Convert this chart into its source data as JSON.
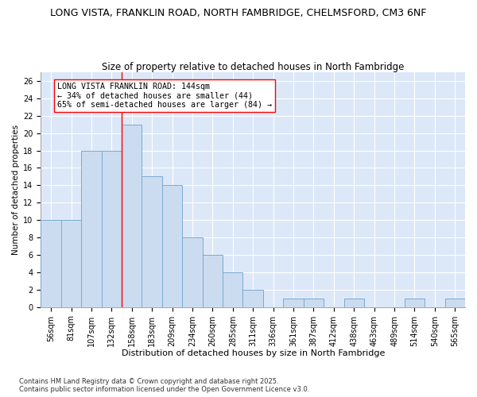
{
  "title1": "LONG VISTA, FRANKLIN ROAD, NORTH FAMBRIDGE, CHELMSFORD, CM3 6NF",
  "title2": "Size of property relative to detached houses in North Fambridge",
  "xlabel": "Distribution of detached houses by size in North Fambridge",
  "ylabel": "Number of detached properties",
  "categories": [
    "56sqm",
    "81sqm",
    "107sqm",
    "132sqm",
    "158sqm",
    "183sqm",
    "209sqm",
    "234sqm",
    "260sqm",
    "285sqm",
    "311sqm",
    "336sqm",
    "361sqm",
    "387sqm",
    "412sqm",
    "438sqm",
    "463sqm",
    "489sqm",
    "514sqm",
    "540sqm",
    "565sqm"
  ],
  "values": [
    10,
    10,
    18,
    18,
    21,
    15,
    14,
    8,
    6,
    4,
    2,
    0,
    1,
    1,
    0,
    1,
    0,
    0,
    1,
    0,
    1
  ],
  "bar_color": "#ccdcf0",
  "bar_edge_color": "#7aaad0",
  "red_line_x": 3.5,
  "annotation_line1": "LONG VISTA FRANKLIN ROAD: 144sqm",
  "annotation_line2": "← 34% of detached houses are smaller (44)",
  "annotation_line3": "65% of semi-detached houses are larger (84) →",
  "ylim": [
    0,
    27
  ],
  "yticks": [
    0,
    2,
    4,
    6,
    8,
    10,
    12,
    14,
    16,
    18,
    20,
    22,
    24,
    26
  ],
  "fig_background_color": "#ffffff",
  "plot_background_color": "#dce8f8",
  "grid_color": "#ffffff",
  "footer_text": "Contains HM Land Registry data © Crown copyright and database right 2025.\nContains public sector information licensed under the Open Government Licence v3.0.",
  "title1_fontsize": 9.0,
  "title2_fontsize": 8.5,
  "xlabel_fontsize": 8.0,
  "ylabel_fontsize": 7.5,
  "tick_fontsize": 7.0,
  "annotation_fontsize": 7.2,
  "footer_fontsize": 6.0
}
